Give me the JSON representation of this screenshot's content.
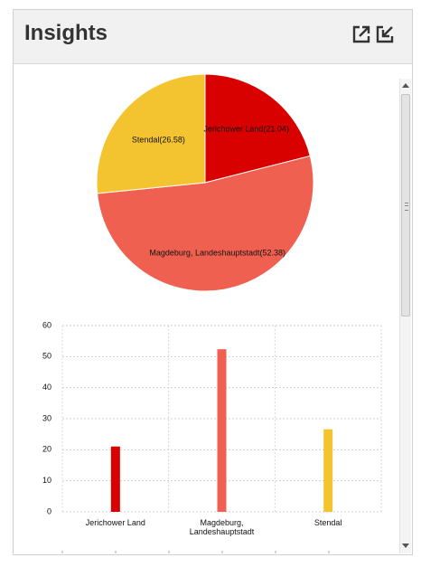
{
  "header": {
    "title": "Insights",
    "popout_icon": "external-link-icon",
    "minimize_icon": "collapse-arrow-icon"
  },
  "chart_data": [
    {
      "type": "pie",
      "categories": [
        "Jerichower Land",
        "Magdeburg, Landeshauptstadt",
        "Stendal"
      ],
      "values": [
        21.04,
        52.38,
        26.58
      ],
      "labels": [
        "Jerichower Land(21.04)",
        "Magdeburg, Landeshauptstadt(52.38)",
        "Stendal(26.58)"
      ],
      "colors": [
        "#d90000",
        "#f06050",
        "#f4c430"
      ]
    },
    {
      "type": "bar",
      "categories": [
        "Jerichower Land",
        "Magdeburg, Landeshauptstadt",
        "Stendal"
      ],
      "category_lines": [
        [
          "Jerichower Land"
        ],
        [
          "Magdeburg,",
          "Landeshauptstadt"
        ],
        [
          "Stendal"
        ]
      ],
      "values": [
        21.04,
        52.38,
        26.58
      ],
      "colors": [
        "#d90000",
        "#f06050",
        "#f4c430"
      ],
      "ylim": [
        0,
        60
      ],
      "yticks": [
        "0",
        "10",
        "20",
        "30",
        "40",
        "50",
        "60"
      ],
      "grid": true
    }
  ]
}
